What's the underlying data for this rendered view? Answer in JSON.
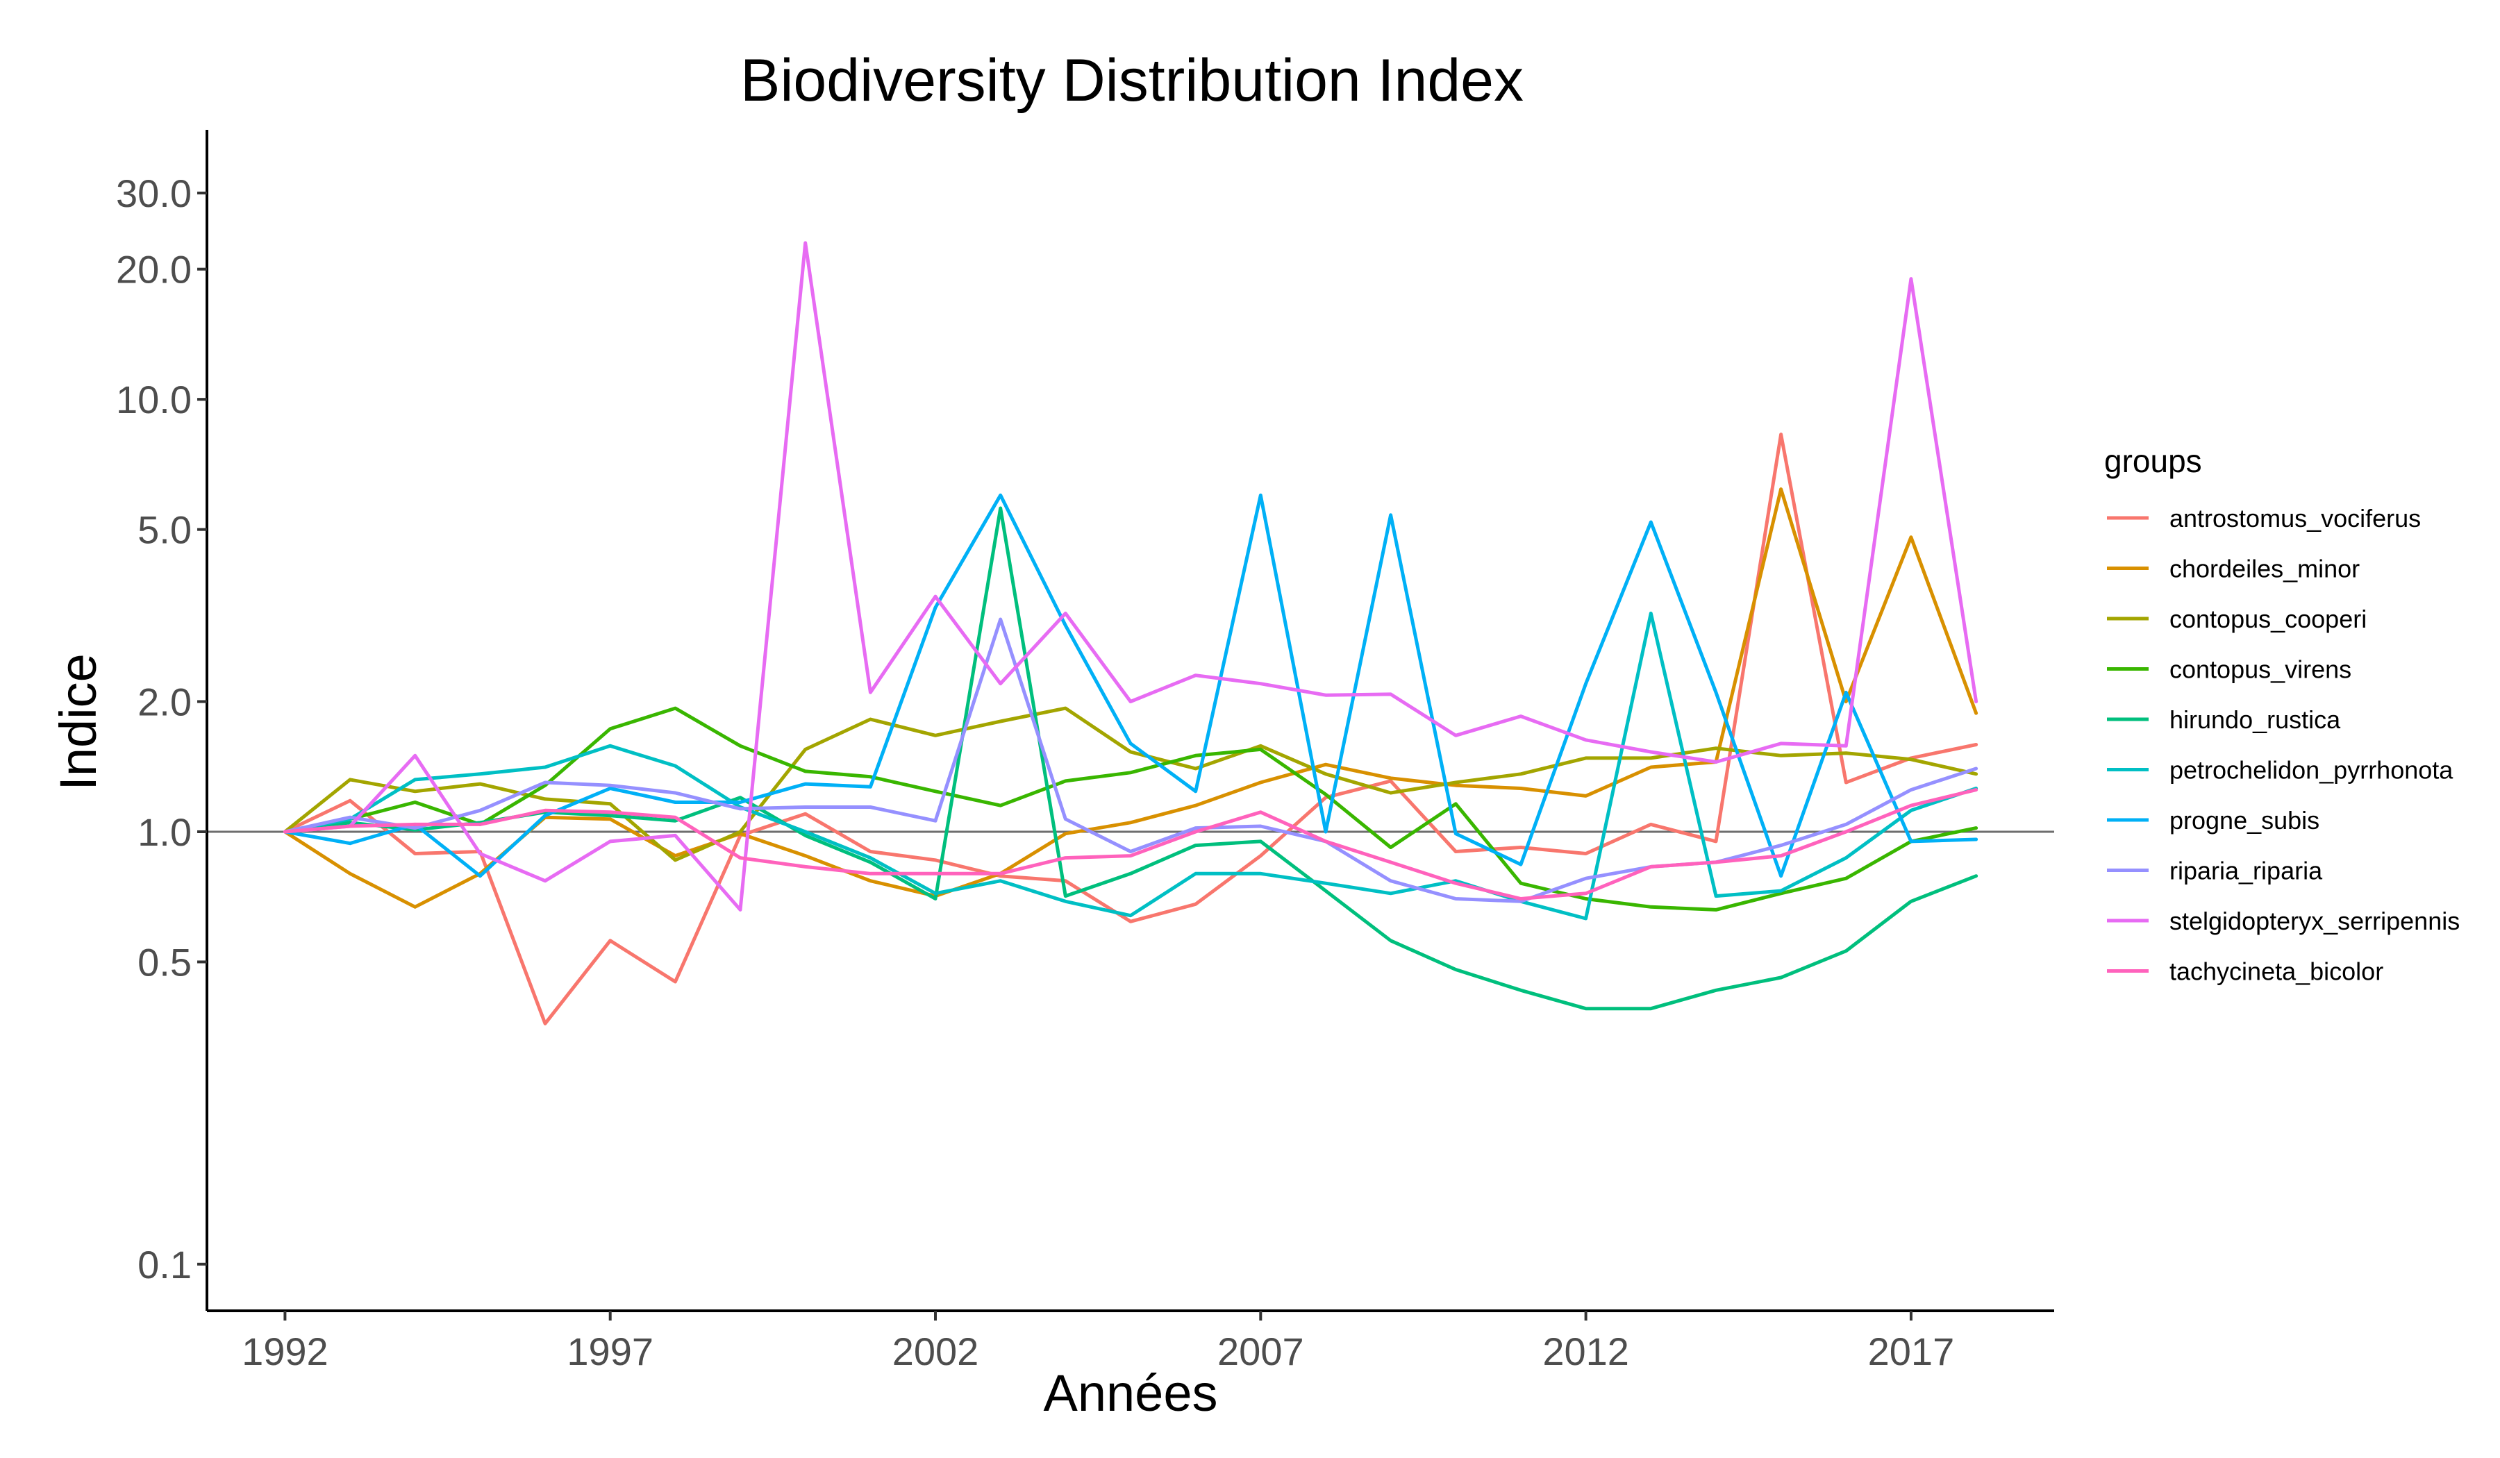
{
  "chart_data": {
    "type": "line",
    "title": "Biodiversity Distribution Index",
    "xlabel": "Années",
    "ylabel": "Indice",
    "yscale": "log",
    "xlim": [
      1990.8,
      2019.2
    ],
    "ylim": [
      0.078,
      42
    ],
    "xticks": [
      1992,
      1997,
      2002,
      2007,
      2012,
      2017
    ],
    "xtick_labels": [
      "1992",
      "1997",
      "2002",
      "2007",
      "2012",
      "2017"
    ],
    "yticks": [
      0.1,
      0.5,
      1.0,
      2.0,
      5.0,
      10.0,
      20.0,
      30.0
    ],
    "ytick_labels": [
      "0.1",
      "0.5",
      "1.0",
      "2.0",
      "5.0",
      "10.0",
      "20.0",
      "30.0"
    ],
    "reference_line": 1.0,
    "grid": false,
    "legend": {
      "title": "groups",
      "position": "right"
    },
    "x": [
      1992,
      1993,
      1994,
      1995,
      1996,
      1997,
      1998,
      1999,
      2000,
      2001,
      2002,
      2003,
      2004,
      2005,
      2006,
      2007,
      2008,
      2009,
      2010,
      2011,
      2012,
      2013,
      2014,
      2015,
      2016,
      2017,
      2018
    ],
    "series": [
      {
        "name": "antrostomus_vociferus",
        "color": "#F8766D",
        "values": [
          1.0,
          1.18,
          0.89,
          0.9,
          0.36,
          0.56,
          0.45,
          0.98,
          1.1,
          0.9,
          0.86,
          0.79,
          0.77,
          0.62,
          0.68,
          0.88,
          1.2,
          1.31,
          0.9,
          0.92,
          0.89,
          1.04,
          0.95,
          8.3,
          1.3,
          1.48,
          1.59
        ]
      },
      {
        "name": "chordeiles_minor",
        "color": "#D89000",
        "values": [
          1.0,
          0.8,
          0.67,
          0.8,
          1.08,
          1.07,
          0.88,
          0.99,
          0.88,
          0.77,
          0.71,
          0.8,
          0.99,
          1.05,
          1.15,
          1.3,
          1.43,
          1.33,
          1.28,
          1.26,
          1.21,
          1.41,
          1.45,
          6.2,
          2.0,
          4.8,
          1.88
        ]
      },
      {
        "name": "contopus_cooperi",
        "color": "#A3A500",
        "values": [
          1.0,
          1.32,
          1.24,
          1.29,
          1.19,
          1.16,
          0.86,
          1.0,
          1.55,
          1.82,
          1.67,
          1.8,
          1.93,
          1.53,
          1.4,
          1.58,
          1.36,
          1.23,
          1.3,
          1.36,
          1.48,
          1.48,
          1.56,
          1.5,
          1.52,
          1.47,
          1.36
        ]
      },
      {
        "name": "contopus_virens",
        "color": "#39B600",
        "values": [
          1.0,
          1.07,
          1.17,
          1.04,
          1.28,
          1.73,
          1.93,
          1.58,
          1.38,
          1.34,
          1.24,
          1.15,
          1.31,
          1.37,
          1.5,
          1.55,
          1.22,
          0.92,
          1.16,
          0.76,
          0.7,
          0.67,
          0.66,
          0.72,
          0.78,
          0.95,
          1.02
        ]
      },
      {
        "name": "hirundo_rustica",
        "color": "#00BF7D",
        "values": [
          1.0,
          1.05,
          1.01,
          1.05,
          1.11,
          1.09,
          1.06,
          1.2,
          0.98,
          0.85,
          0.7,
          5.6,
          0.71,
          0.8,
          0.93,
          0.95,
          0.73,
          0.56,
          0.48,
          0.43,
          0.39,
          0.39,
          0.43,
          0.46,
          0.53,
          0.69,
          0.79
        ]
      },
      {
        "name": "petrochelidon_pyrrhonota",
        "color": "#00BFC4",
        "values": [
          1.0,
          1.07,
          1.32,
          1.36,
          1.41,
          1.58,
          1.42,
          1.14,
          1.0,
          0.87,
          0.72,
          0.77,
          0.69,
          0.64,
          0.8,
          0.8,
          0.76,
          0.72,
          0.77,
          0.69,
          0.63,
          3.2,
          0.71,
          0.73,
          0.87,
          1.12,
          1.26
        ]
      },
      {
        "name": "progne_subis",
        "color": "#00B0F6",
        "values": [
          1.0,
          0.94,
          1.04,
          0.79,
          1.09,
          1.26,
          1.17,
          1.17,
          1.29,
          1.27,
          3.3,
          6.0,
          3.0,
          1.6,
          1.24,
          6.0,
          1.0,
          5.4,
          0.99,
          0.84,
          2.2,
          5.2,
          2.1,
          0.79,
          2.1,
          0.95,
          0.96
        ]
      },
      {
        "name": "riparia_riparia",
        "color": "#9590FF",
        "values": [
          1.0,
          1.08,
          1.02,
          1.12,
          1.3,
          1.28,
          1.23,
          1.13,
          1.14,
          1.14,
          1.06,
          3.1,
          1.07,
          0.9,
          1.02,
          1.03,
          0.95,
          0.77,
          0.7,
          0.69,
          0.78,
          0.83,
          0.85,
          0.93,
          1.04,
          1.25,
          1.4
        ]
      },
      {
        "name": "stelgidopteryx_serripennis",
        "color": "#E76BF3",
        "values": [
          1.0,
          1.03,
          1.5,
          0.89,
          0.77,
          0.95,
          0.98,
          0.66,
          23.0,
          2.1,
          3.5,
          2.2,
          3.2,
          2.0,
          2.3,
          2.2,
          2.07,
          2.08,
          1.67,
          1.85,
          1.63,
          1.53,
          1.45,
          1.6,
          1.58,
          19.0,
          2.0
        ]
      },
      {
        "name": "tachycineta_bicolor",
        "color": "#FF62BC",
        "values": [
          1.0,
          1.03,
          1.04,
          1.04,
          1.12,
          1.11,
          1.08,
          0.87,
          0.83,
          0.8,
          0.8,
          0.8,
          0.87,
          0.88,
          1.0,
          1.11,
          0.95,
          0.85,
          0.76,
          0.7,
          0.72,
          0.83,
          0.85,
          0.88,
          1.0,
          1.15,
          1.25
        ]
      }
    ]
  }
}
